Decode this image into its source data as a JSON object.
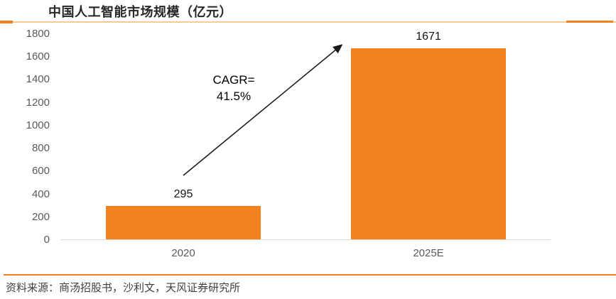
{
  "chart_data": {
    "type": "bar",
    "title": "中国人工智能市场规模（亿元）",
    "categories": [
      "2020",
      "2025E"
    ],
    "values": [
      295,
      1671
    ],
    "bar_labels": [
      "295",
      "1671"
    ],
    "xlabel": "",
    "ylabel": "",
    "ylim": [
      0,
      1800
    ],
    "ytick_step": 200,
    "ytick_labels": [
      "0",
      "200",
      "400",
      "600",
      "800",
      "1000",
      "1200",
      "1400",
      "1600",
      "1800"
    ],
    "grid": false,
    "legend": false,
    "bar_color": "#F28122",
    "annotation": {
      "text": "CAGR= 41.5%",
      "arrow_from_category": "2020",
      "arrow_to_category": "2025E"
    }
  },
  "annotation": {
    "line1": "CAGR=",
    "line2": "41.5%"
  },
  "source": "资料来源：商汤招股书，沙利文，天风证券研究所",
  "colors": {
    "bar": "#F28122",
    "rule_light": "#FAC893",
    "rule_dark": "#F28122",
    "axis_line": "#D9D9D9",
    "tick_text": "#595959",
    "value_text": "#111111",
    "title_text": "#262626",
    "source_text": "#3F3F3F",
    "arrow": "#1A1A1A"
  }
}
